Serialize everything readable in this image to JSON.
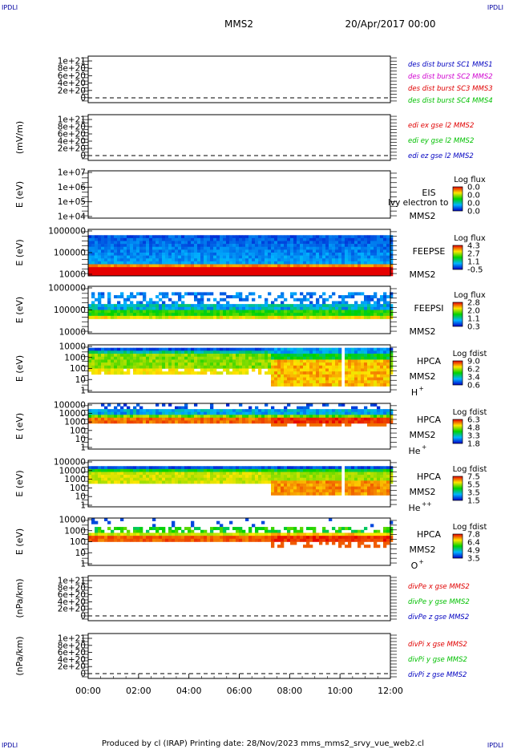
{
  "header": {
    "corner_label": "IPDLI",
    "title": "MMS2",
    "date": "20/Apr/2017 00:00"
  },
  "footer": {
    "text": "Produced by cl (IRAP)   Printing date: 28/Nov/2023   mms_mms2_srvy_vue_web2.cl"
  },
  "colors": {
    "red": "#e00000",
    "green": "#00c000",
    "blue": "#0000c0",
    "magenta": "#d000d0",
    "plot_blue": "#1030d0",
    "navy": "#0000a0"
  },
  "chart_data": {
    "type": "heatmap",
    "x_tick_labels": [
      "00:00",
      "02:00",
      "04:00",
      "06:00",
      "08:00",
      "10:00",
      "12:00"
    ],
    "xlim_hours": [
      0,
      12
    ],
    "panels": [
      {
        "id": "des-dist",
        "kind": "line",
        "ylabel": "",
        "y_ticks": [
          "1e+21",
          "8e+20",
          "6e+20",
          "4e+20",
          "2e+20",
          "0"
        ],
        "legend": [
          {
            "text": "des dist burst SC1 MMS1",
            "color": "blue"
          },
          {
            "text": "des dist burst SC2 MMS2",
            "color": "magenta"
          },
          {
            "text": "des dist burst SC3 MMS3",
            "color": "red"
          },
          {
            "text": "des dist burst SC4 MMS4",
            "color": "green"
          }
        ]
      },
      {
        "id": "edi",
        "kind": "line",
        "ylabel": "(mV/m)",
        "y_ticks": [
          "1e+21",
          "8e+20",
          "6e+20",
          "4e+20",
          "2e+20",
          "0"
        ],
        "legend": [
          {
            "text": "edi ex gse l2 MMS2",
            "color": "red"
          },
          {
            "text": "edi ey gse l2 MMS2",
            "color": "green"
          },
          {
            "text": "edi ez gse l2 MMS2",
            "color": "blue"
          }
        ]
      },
      {
        "id": "eis",
        "kind": "spectrogram",
        "ylabel": "E (eV)",
        "y_ticks": [
          "1e+07",
          "1e+06",
          "1e+05",
          "1e+04"
        ],
        "side_labels": [
          "EIS",
          "MMS2"
        ],
        "overflow_text": "lvy electron to",
        "cbar_title": "Log flux",
        "cbar_ticks": [
          "0.0",
          "0.0",
          "0.0",
          "0.0"
        ],
        "empty": true
      },
      {
        "id": "feepse",
        "kind": "spectrogram",
        "ylabel": "E (eV)",
        "y_ticks": [
          "1000000",
          "100000",
          "10000"
        ],
        "side_labels": [
          "FEEPSE",
          "MMS2"
        ],
        "cbar_title": "Log flux",
        "cbar_ticks": [
          "4.3",
          "2.7",
          "1.1",
          "-0.5"
        ]
      },
      {
        "id": "feepsi",
        "kind": "spectrogram",
        "ylabel": "E (eV)",
        "y_ticks": [
          "1000000",
          "100000",
          "10000"
        ],
        "side_labels": [
          "FEEPSI",
          "MMS2"
        ],
        "cbar_title": "Log flux",
        "cbar_ticks": [
          "2.8",
          "2.0",
          "1.1",
          "0.3"
        ]
      },
      {
        "id": "hpca-h",
        "kind": "spectrogram",
        "ylabel": "E (eV)",
        "y_ticks": [
          "10000",
          "1000",
          "100",
          "10",
          "1"
        ],
        "side_labels": [
          "HPCA",
          "MMS2"
        ],
        "species": "H",
        "species_sup": "+",
        "cbar_title": "Log fdist",
        "cbar_ticks": [
          "9.0",
          "6.2",
          "3.4",
          "0.6"
        ]
      },
      {
        "id": "hpca-he",
        "kind": "spectrogram",
        "ylabel": "E (eV)",
        "y_ticks": [
          "100000",
          "10000",
          "1000",
          "100",
          "10",
          "1"
        ],
        "side_labels": [
          "HPCA",
          "MMS2"
        ],
        "species": "He",
        "species_sup": "+",
        "cbar_title": "Log fdist",
        "cbar_ticks": [
          "6.3",
          "4.8",
          "3.3",
          "1.8"
        ]
      },
      {
        "id": "hpca-he2",
        "kind": "spectrogram",
        "ylabel": "E (eV)",
        "y_ticks": [
          "100000",
          "10000",
          "1000",
          "100",
          "10",
          "1"
        ],
        "side_labels": [
          "HPCA",
          "MMS2"
        ],
        "species": "He",
        "species_sup": "++",
        "cbar_title": "Log fdist",
        "cbar_ticks": [
          "7.5",
          "5.5",
          "3.5",
          "1.5"
        ]
      },
      {
        "id": "hpca-o",
        "kind": "spectrogram",
        "ylabel": "E (eV)",
        "y_ticks": [
          "10000",
          "1000",
          "100",
          "10",
          "1"
        ],
        "side_labels": [
          "HPCA",
          "MMS2"
        ],
        "species": "O",
        "species_sup": "+",
        "cbar_title": "Log fdist",
        "cbar_ticks": [
          "7.8",
          "6.4",
          "4.9",
          "3.5"
        ]
      },
      {
        "id": "divpe",
        "kind": "line",
        "ylabel": "(nPa/km)",
        "y_ticks": [
          "1e+21",
          "8e+20",
          "6e+20",
          "4e+20",
          "2e+20",
          "0"
        ],
        "legend": [
          {
            "text": "divPe x gse MMS2",
            "color": "red"
          },
          {
            "text": "divPe y gse MMS2",
            "color": "green"
          },
          {
            "text": "divPe z gse MMS2",
            "color": "blue"
          }
        ]
      },
      {
        "id": "divpi",
        "kind": "line",
        "ylabel": "(nPa/km)",
        "y_ticks": [
          "1e+21",
          "8e+20",
          "6e+20",
          "4e+20",
          "2e+20",
          "0"
        ],
        "legend": [
          {
            "text": "divPi x gse MMS2",
            "color": "red"
          },
          {
            "text": "divPi y gse MMS2",
            "color": "green"
          },
          {
            "text": "divPi z gse MMS2",
            "color": "blue"
          }
        ]
      }
    ]
  }
}
